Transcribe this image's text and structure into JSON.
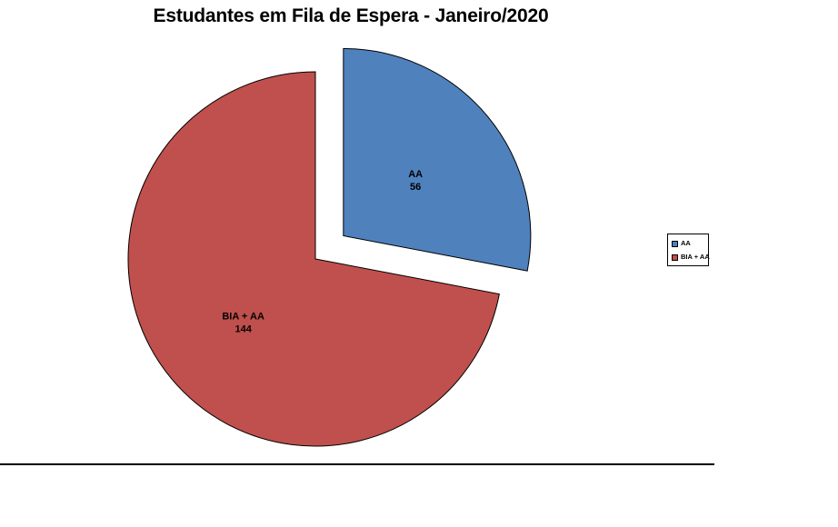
{
  "chart_data": {
    "type": "pie",
    "title": "Estudantes em Fila de Espera - Janeiro/2020",
    "labels": [
      "AA",
      "BIA + AA"
    ],
    "values": [
      56,
      144
    ],
    "colors": [
      "#4F81BD",
      "#C0504D"
    ],
    "exploded": [
      true,
      false
    ],
    "start_angle_deg": 0,
    "clockwise": true,
    "legend_position": "right",
    "legend_entries": [
      "AA",
      "BIA + AA"
    ]
  }
}
